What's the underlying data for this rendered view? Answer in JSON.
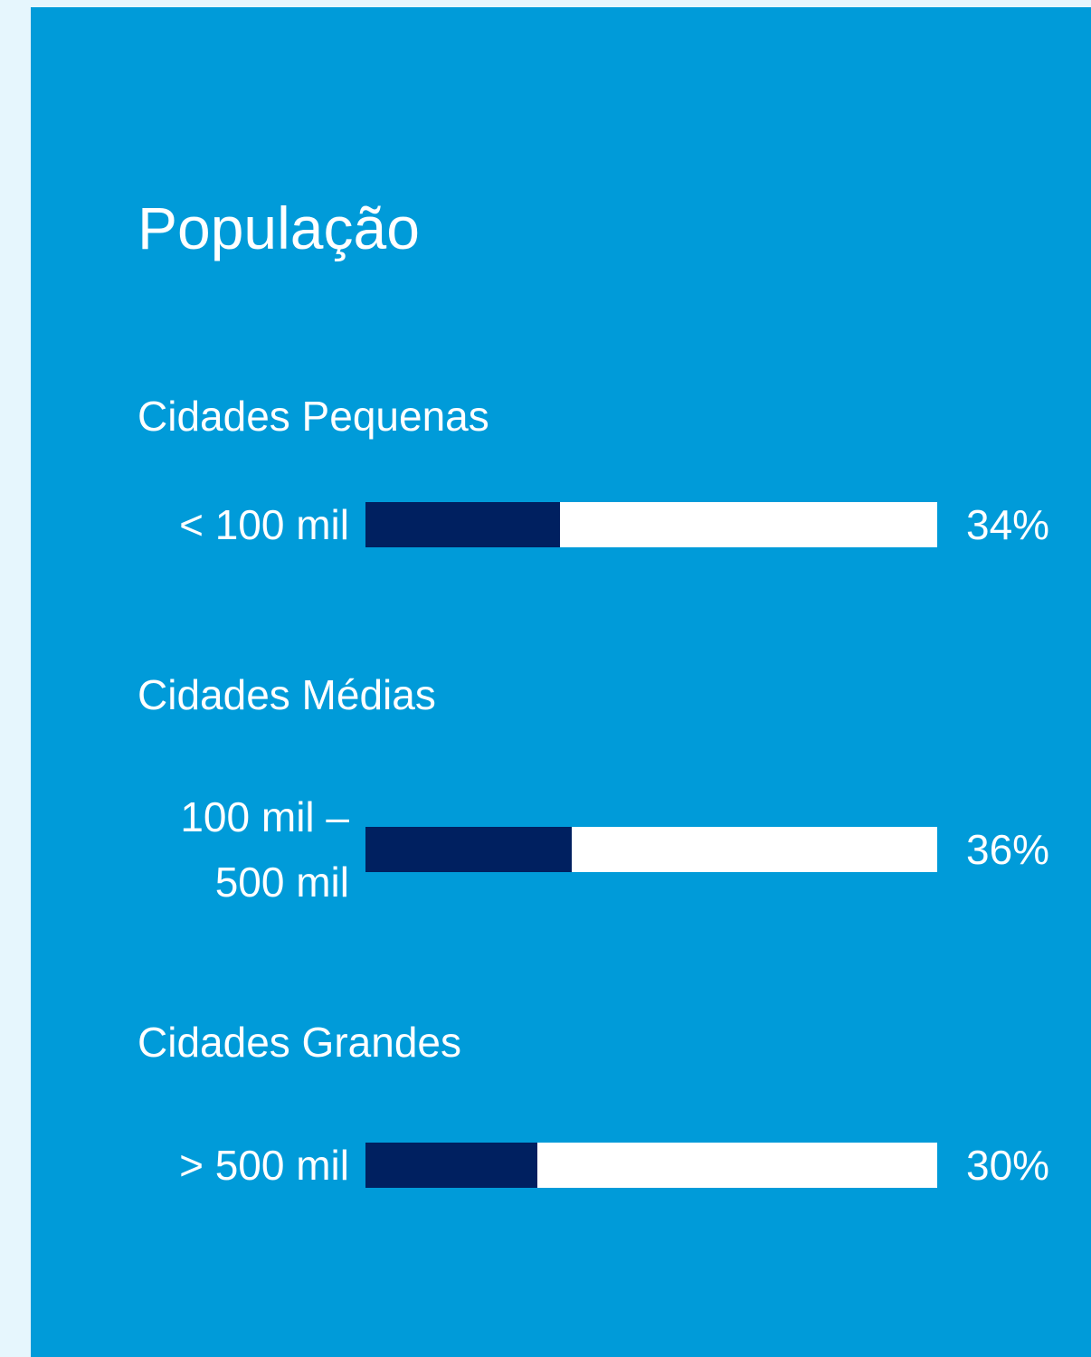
{
  "chart_data": {
    "type": "bar",
    "orientation": "horizontal",
    "title": "População",
    "groups": [
      "Cidades Pequenas",
      "Cidades Médias",
      "Cidades Grandes"
    ],
    "categories": [
      "< 100 mil",
      "100 mil – 500 mil",
      "> 500 mil"
    ],
    "values": [
      34,
      36,
      30
    ],
    "value_labels": [
      "34%",
      "36%",
      "30%"
    ],
    "xlim": [
      0,
      100
    ],
    "color": "#002060",
    "track_color": "#ffffff"
  }
}
